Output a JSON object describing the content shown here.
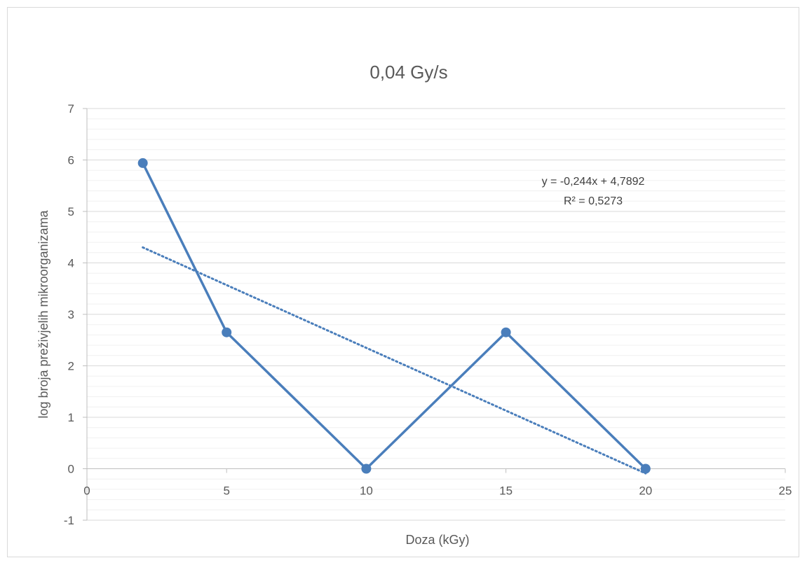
{
  "chart_data": {
    "type": "scatter",
    "title": "0,04 Gy/s",
    "xlabel": "Doza (kGy)",
    "ylabel": "log broja preživjelih mikroorganizama",
    "xlim": [
      0,
      25
    ],
    "ylim": [
      -1,
      7
    ],
    "x_ticks": [
      0,
      5,
      10,
      15,
      20,
      25
    ],
    "y_ticks": [
      -1,
      0,
      1,
      2,
      3,
      4,
      5,
      6,
      7
    ],
    "grid": true,
    "series": [
      {
        "x": [
          2,
          5,
          10,
          15,
          20
        ],
        "y": [
          5.94,
          2.65,
          0,
          2.65,
          0
        ],
        "color": "#4a7ebb",
        "lines": "solid",
        "markers": true
      }
    ],
    "trendline": {
      "kind": "linear",
      "slope": -0.244,
      "intercept": 4.7892,
      "x_range": [
        2,
        20
      ],
      "style": "dotted",
      "color": "#4a7ebb",
      "equation": "y = -0,244x + 4,7892",
      "r_squared": "R² = 0,5273"
    }
  }
}
